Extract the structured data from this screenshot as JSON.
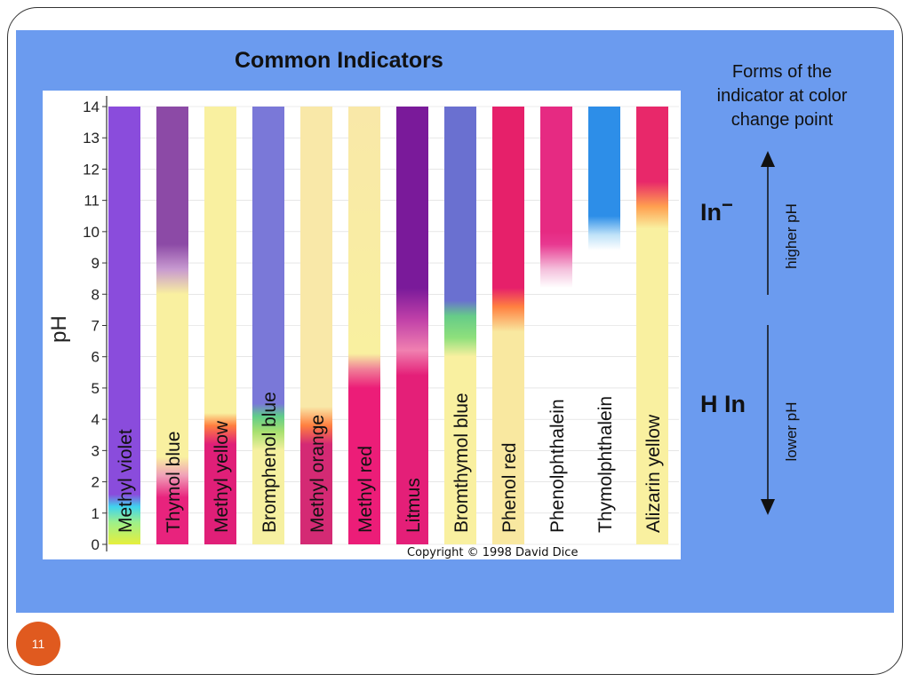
{
  "slide": {
    "title": "Common Indicators",
    "number": "11",
    "copyright": "Copyright © 1998 David Dice"
  },
  "legend": {
    "title_lines": [
      "Forms of the",
      "indicator at color",
      "change point"
    ],
    "ionized_form": "In",
    "ionized_charge": "−",
    "acid_form": "H In",
    "higher_label": "higher pH",
    "lower_label": "lower pH"
  },
  "chart_data": {
    "type": "bar",
    "ylabel": "pH",
    "ylim": [
      0,
      14
    ],
    "yticks": [
      "0",
      "1",
      "2",
      "3",
      "4",
      "5",
      "6",
      "7",
      "8",
      "9",
      "10",
      "11",
      "12",
      "13",
      "14"
    ],
    "indicators": [
      {
        "name": "Methyl violet",
        "stops": [
          [
            0,
            "#e6ef3c"
          ],
          [
            0.7,
            "#9ef08a"
          ],
          [
            1.2,
            "#3fd4ee"
          ],
          [
            1.6,
            "#8a4cdc"
          ],
          [
            14,
            "#8a4cdc"
          ]
        ]
      },
      {
        "name": "Thymol blue",
        "stops": [
          [
            0,
            "#e8237d"
          ],
          [
            1.5,
            "#e8237d"
          ],
          [
            2.2,
            "#f0a0b8"
          ],
          [
            2.8,
            "#f9f0a0"
          ],
          [
            8,
            "#f9f0a0"
          ],
          [
            8.8,
            "#c89ad0"
          ],
          [
            9.6,
            "#8c4aa6"
          ],
          [
            14,
            "#8c4aa6"
          ]
        ]
      },
      {
        "name": "Methyl yellow",
        "stops": [
          [
            0,
            "#e01f78"
          ],
          [
            3.2,
            "#e01f78"
          ],
          [
            3.8,
            "#ff8040"
          ],
          [
            4.2,
            "#f9f0a0"
          ],
          [
            14,
            "#f9f0a0"
          ]
        ]
      },
      {
        "name": "Bromphenol blue",
        "stops": [
          [
            0,
            "#f6f0a0"
          ],
          [
            3,
            "#f6f0a0"
          ],
          [
            3.6,
            "#a8e070"
          ],
          [
            4.1,
            "#60cc8a"
          ],
          [
            4.5,
            "#7a78d8"
          ],
          [
            14,
            "#7a78d8"
          ]
        ]
      },
      {
        "name": "Methyl orange",
        "stops": [
          [
            0,
            "#d42a74"
          ],
          [
            3.2,
            "#d42a74"
          ],
          [
            3.8,
            "#ff8040"
          ],
          [
            4.4,
            "#f9e8a8"
          ],
          [
            14,
            "#f9e8a8"
          ]
        ]
      },
      {
        "name": "Methyl red",
        "stops": [
          [
            0,
            "#ec1d78"
          ],
          [
            5,
            "#ec1d78"
          ],
          [
            5.6,
            "#f08098"
          ],
          [
            6.1,
            "#f9f0a0"
          ],
          [
            14,
            "#f9e8a8"
          ]
        ]
      },
      {
        "name": "Litmus",
        "stops": [
          [
            0,
            "#e41f78"
          ],
          [
            5.4,
            "#e41f78"
          ],
          [
            6.2,
            "#f080b0"
          ],
          [
            7.2,
            "#c040a8"
          ],
          [
            8.2,
            "#7a1a9a"
          ],
          [
            14,
            "#7a1a9a"
          ]
        ]
      },
      {
        "name": "Bromthymol blue",
        "stops": [
          [
            0,
            "#f9f0a0"
          ],
          [
            6,
            "#f9f0a0"
          ],
          [
            6.6,
            "#8fe07c"
          ],
          [
            7.3,
            "#66cc88"
          ],
          [
            7.8,
            "#6a70d0"
          ],
          [
            14,
            "#6a70d0"
          ]
        ]
      },
      {
        "name": "Phenol red",
        "stops": [
          [
            0,
            "#f9e8a0"
          ],
          [
            6.8,
            "#f9e8a0"
          ],
          [
            7.6,
            "#ff8040"
          ],
          [
            8.2,
            "#e6206a"
          ],
          [
            14,
            "#e6206a"
          ]
        ]
      },
      {
        "name": "Phenolphthalein",
        "stops": [
          [
            8.2,
            "#ffffff"
          ],
          [
            8.8,
            "#f4c0dc"
          ],
          [
            9.6,
            "#e83890"
          ],
          [
            10,
            "#e62a82"
          ],
          [
            14,
            "#e62a82"
          ]
        ]
      },
      {
        "name": "Thymolphthalein",
        "stops": [
          [
            9.4,
            "#ffffff"
          ],
          [
            9.9,
            "#bfe2f8"
          ],
          [
            10.5,
            "#2d8ee8"
          ],
          [
            14,
            "#2d8ee8"
          ]
        ]
      },
      {
        "name": "Alizarin yellow",
        "stops": [
          [
            0,
            "#f9f0a0"
          ],
          [
            10.1,
            "#f9f0a0"
          ],
          [
            10.8,
            "#ffa050"
          ],
          [
            11.6,
            "#e8286a"
          ],
          [
            14,
            "#e8286a"
          ]
        ]
      }
    ]
  }
}
